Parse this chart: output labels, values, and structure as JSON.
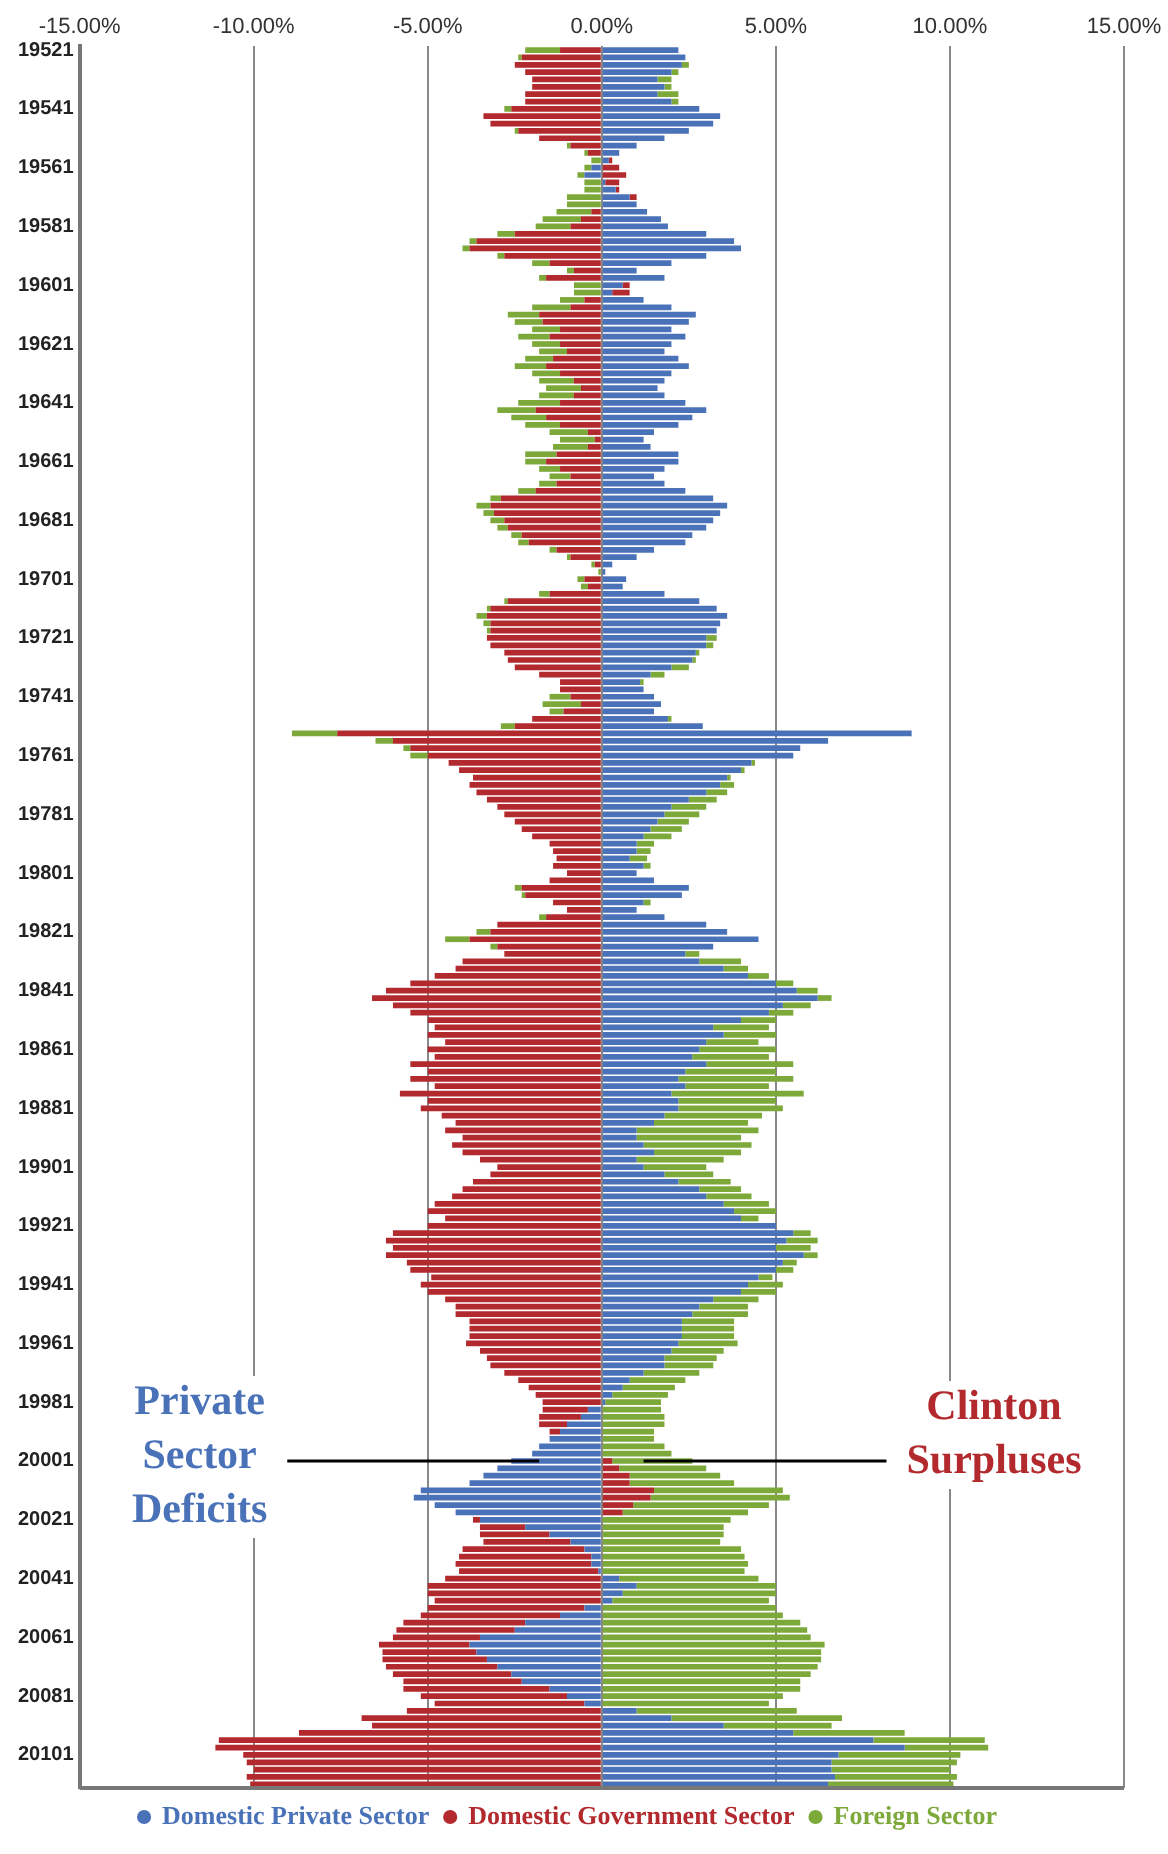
{
  "chart_data": {
    "type": "bar",
    "orientation": "horizontal",
    "stacked": true,
    "grid": "x",
    "legend": "bottom",
    "xlim": [
      -15,
      15
    ],
    "xticks": [
      {
        "value": -15,
        "label": "-15.00%"
      },
      {
        "value": -10,
        "label": "-10.00%"
      },
      {
        "value": -5,
        "label": "-5.00%"
      },
      {
        "value": 0,
        "label": "0.00%"
      },
      {
        "value": 5,
        "label": "5.00%"
      },
      {
        "value": 10,
        "label": "10.00%"
      },
      {
        "value": 15,
        "label": "15.00%"
      }
    ],
    "categories": [
      "19521",
      null,
      null,
      null,
      null,
      null,
      null,
      null,
      "19541",
      null,
      null,
      null,
      null,
      null,
      null,
      null,
      "19561",
      null,
      null,
      null,
      null,
      null,
      null,
      null,
      "19581",
      null,
      null,
      null,
      null,
      null,
      null,
      null,
      "19601",
      null,
      null,
      null,
      null,
      null,
      null,
      null,
      "19621",
      null,
      null,
      null,
      null,
      null,
      null,
      null,
      "19641",
      null,
      null,
      null,
      null,
      null,
      null,
      null,
      "19661",
      null,
      null,
      null,
      null,
      null,
      null,
      null,
      "19681",
      null,
      null,
      null,
      null,
      null,
      null,
      null,
      "19701",
      null,
      null,
      null,
      null,
      null,
      null,
      null,
      "19721",
      null,
      null,
      null,
      null,
      null,
      null,
      null,
      "19741",
      null,
      null,
      null,
      null,
      null,
      null,
      null,
      "19761",
      null,
      null,
      null,
      null,
      null,
      null,
      null,
      "19781",
      null,
      null,
      null,
      null,
      null,
      null,
      null,
      "19801",
      null,
      null,
      null,
      null,
      null,
      null,
      null,
      "19821",
      null,
      null,
      null,
      null,
      null,
      null,
      null,
      "19841",
      null,
      null,
      null,
      null,
      null,
      null,
      null,
      "19861",
      null,
      null,
      null,
      null,
      null,
      null,
      null,
      "19881",
      null,
      null,
      null,
      null,
      null,
      null,
      null,
      "19901",
      null,
      null,
      null,
      null,
      null,
      null,
      null,
      "19921",
      null,
      null,
      null,
      null,
      null,
      null,
      null,
      "19941",
      null,
      null,
      null,
      null,
      null,
      null,
      null,
      "19961",
      null,
      null,
      null,
      null,
      null,
      null,
      null,
      "19981",
      null,
      null,
      null,
      null,
      null,
      null,
      null,
      "20001",
      null,
      null,
      null,
      null,
      null,
      null,
      null,
      "20021",
      null,
      null,
      null,
      null,
      null,
      null,
      null,
      "20041",
      null,
      null,
      null,
      null,
      null,
      null,
      null,
      "20061",
      null,
      null,
      null,
      null,
      null,
      null,
      null,
      "20081",
      null,
      null,
      null,
      null,
      null,
      null,
      null,
      "20101",
      null,
      null,
      null,
      null
    ],
    "series": [
      {
        "name": "Domestic Private Sector",
        "color": "#4a72b8",
        "values": [
          2.2,
          2.4,
          2.3,
          2.0,
          1.6,
          1.8,
          1.6,
          2.0,
          2.8,
          3.4,
          3.2,
          2.5,
          1.8,
          1.0,
          0.5,
          0.2,
          -0.3,
          -0.5,
          0.1,
          0.4,
          0.8,
          1.0,
          1.3,
          1.7,
          1.9,
          3.0,
          3.8,
          4.0,
          3.0,
          2.0,
          1.0,
          1.8,
          0.6,
          0.3,
          1.2,
          2.0,
          2.7,
          2.5,
          2.0,
          2.4,
          2.0,
          1.8,
          2.2,
          2.5,
          2.0,
          1.8,
          1.6,
          1.8,
          2.4,
          3.0,
          2.6,
          2.2,
          1.5,
          1.2,
          1.4,
          2.2,
          2.2,
          1.8,
          1.5,
          1.8,
          2.4,
          3.2,
          3.6,
          3.4,
          3.2,
          3.0,
          2.6,
          2.4,
          1.5,
          1.0,
          0.3,
          0.1,
          0.7,
          0.6,
          1.8,
          2.8,
          3.3,
          3.6,
          3.4,
          3.3,
          3.0,
          3.0,
          2.7,
          2.6,
          2.0,
          1.4,
          1.1,
          1.2,
          1.5,
          1.7,
          1.5,
          1.9,
          2.9,
          8.9,
          6.5,
          5.7,
          5.5,
          4.3,
          4.0,
          3.6,
          3.4,
          3.0,
          2.5,
          2.0,
          1.8,
          1.6,
          1.4,
          1.2,
          1.0,
          1.0,
          0.8,
          1.2,
          1.0,
          1.5,
          2.5,
          2.3,
          1.2,
          1.0,
          1.8,
          3.0,
          3.6,
          4.5,
          3.2,
          2.4,
          2.8,
          3.5,
          4.2,
          5.0,
          5.6,
          6.2,
          5.2,
          4.8,
          4.0,
          3.2,
          3.5,
          3.0,
          2.8,
          2.6,
          3.0,
          2.4,
          2.2,
          2.4,
          2.0,
          2.2,
          2.2,
          1.8,
          1.5,
          1.0,
          1.0,
          1.2,
          1.5,
          1.0,
          1.2,
          1.8,
          2.2,
          2.8,
          3.0,
          3.5,
          3.8,
          4.0,
          5.0,
          5.5,
          5.3,
          5.0,
          5.8,
          5.2,
          5.0,
          4.5,
          4.2,
          4.0,
          3.2,
          2.8,
          2.6,
          2.3,
          2.3,
          2.3,
          2.2,
          2.0,
          1.8,
          1.8,
          1.2,
          0.8,
          0.6,
          0.3,
          0.1,
          -0.4,
          -0.6,
          -1.0,
          -1.2,
          -1.5,
          -1.8,
          -2.0,
          -2.6,
          -3.0,
          -3.4,
          -3.8,
          -5.2,
          -5.4,
          -4.8,
          -4.2,
          -3.5,
          -2.2,
          -1.5,
          -0.9,
          -0.5,
          -0.3,
          -0.3,
          -0.1,
          0.5,
          1.0,
          0.6,
          0.3,
          -0.5,
          -1.2,
          -2.2,
          -2.5,
          -3.5,
          -3.8,
          -3.6,
          -3.3,
          -3.0,
          -2.6,
          -2.3,
          -1.5,
          -1.0,
          -0.5,
          1.0,
          2.0,
          3.5,
          5.5,
          7.8,
          8.7,
          6.8,
          6.6,
          6.6,
          6.7,
          6.5
        ]
      },
      {
        "name": "Domestic Government Sector",
        "color": "#b22a2e",
        "values": [
          -1.2,
          -2.3,
          -2.5,
          -2.2,
          -2.0,
          -2.0,
          -2.2,
          -2.2,
          -2.6,
          -3.4,
          -3.2,
          -2.4,
          -1.8,
          -0.9,
          -0.4,
          0.1,
          0.5,
          0.7,
          0.4,
          0.1,
          0.2,
          0,
          -0.3,
          -0.6,
          -0.9,
          -2.5,
          -3.6,
          -3.8,
          -2.8,
          -1.5,
          -0.8,
          -1.6,
          0.2,
          0.5,
          -0.5,
          -0.9,
          -1.8,
          -1.7,
          -1.2,
          -1.5,
          -1.2,
          -1.0,
          -1.4,
          -1.6,
          -1.2,
          -0.8,
          -0.6,
          -0.8,
          -1.2,
          -1.9,
          -1.6,
          -1.2,
          -0.4,
          -0.2,
          -0.4,
          -1.3,
          -1.6,
          -1.2,
          -0.9,
          -1.3,
          -1.9,
          -2.9,
          -3.2,
          -3.1,
          -2.8,
          -2.7,
          -2.3,
          -2.1,
          -1.3,
          -0.9,
          -0.2,
          0,
          -0.5,
          -0.4,
          -1.5,
          -2.7,
          -3.2,
          -3.3,
          -3.2,
          -3.2,
          -3.3,
          -3.2,
          -2.8,
          -2.7,
          -2.5,
          -1.8,
          -1.2,
          -1.2,
          -0.9,
          -0.6,
          -1.1,
          -2.0,
          -2.5,
          -7.6,
          -6.0,
          -5.5,
          -5.0,
          -4.4,
          -4.1,
          -3.7,
          -3.8,
          -3.6,
          -3.3,
          -3.0,
          -2.8,
          -2.5,
          -2.3,
          -2.0,
          -1.5,
          -1.4,
          -1.3,
          -1.4,
          -1.0,
          -1.5,
          -2.3,
          -2.2,
          -1.4,
          -1.0,
          -1.6,
          -3.0,
          -3.2,
          -3.8,
          -3.0,
          -2.8,
          -4.0,
          -4.2,
          -4.8,
          -5.5,
          -6.2,
          -6.6,
          -6.0,
          -5.5,
          -5.0,
          -4.8,
          -5.0,
          -4.5,
          -5.0,
          -4.8,
          -5.5,
          -5.0,
          -5.5,
          -4.8,
          -5.8,
          -5.0,
          -5.2,
          -4.6,
          -4.2,
          -4.5,
          -4.0,
          -4.3,
          -4.0,
          -3.5,
          -3.0,
          -3.2,
          -3.7,
          -4.0,
          -4.3,
          -4.8,
          -5.0,
          -4.5,
          -5.0,
          -6.0,
          -6.2,
          -6.0,
          -6.2,
          -5.6,
          -5.5,
          -4.9,
          -5.2,
          -5.0,
          -4.5,
          -4.2,
          -4.2,
          -3.8,
          -3.8,
          -3.8,
          -3.9,
          -3.5,
          -3.3,
          -3.2,
          -2.8,
          -2.4,
          -2.1,
          -1.9,
          -1.7,
          -1.3,
          -1.2,
          -0.8,
          -0.3,
          0,
          0,
          0,
          0.3,
          0.5,
          0.8,
          0.8,
          1.5,
          1.4,
          0.9,
          0.6,
          -0.2,
          -1.3,
          -2.0,
          -2.5,
          -3.5,
          -3.8,
          -3.9,
          -4.0,
          -4.5,
          -5.0,
          -5.0,
          -4.8,
          -4.5,
          -4.0,
          -3.5,
          -3.4,
          -2.5,
          -2.6,
          -2.7,
          -3.0,
          -3.2,
          -3.4,
          -3.4,
          -4.2,
          -4.2,
          -4.3,
          -5.6,
          -6.9,
          -6.6,
          -8.7,
          -11.0,
          -11.1,
          -10.3,
          -10.2,
          -10.0,
          -10.2,
          -10.1
        ]
      },
      {
        "name": "Foreign Sector",
        "color": "#7da83a",
        "values": [
          -1.0,
          -0.1,
          0.2,
          0.2,
          0.4,
          0.2,
          0.6,
          0.2,
          -0.2,
          0,
          0,
          -0.1,
          0,
          -0.1,
          -0.1,
          -0.3,
          -0.2,
          -0.2,
          -0.5,
          -0.5,
          -1.0,
          -1.0,
          -1.0,
          -1.1,
          -1.0,
          -0.5,
          -0.2,
          -0.2,
          -0.2,
          -0.5,
          -0.2,
          -0.2,
          -0.8,
          -0.8,
          -0.7,
          -1.1,
          -0.9,
          -0.8,
          -0.8,
          -0.9,
          -0.8,
          -0.8,
          -0.8,
          -0.9,
          -0.8,
          -1.0,
          -1.0,
          -1.0,
          -1.2,
          -1.1,
          -1.0,
          -1.0,
          -1.1,
          -1.0,
          -1.0,
          -0.9,
          -0.6,
          -0.6,
          -0.6,
          -0.5,
          -0.5,
          -0.3,
          -0.4,
          -0.3,
          -0.4,
          -0.3,
          -0.3,
          -0.3,
          -0.2,
          -0.1,
          -0.1,
          -0.1,
          -0.2,
          -0.2,
          -0.3,
          -0.1,
          -0.1,
          -0.3,
          -0.2,
          -0.1,
          0.3,
          0.2,
          0.1,
          0.1,
          0.5,
          0.4,
          0.1,
          0,
          -0.6,
          -1.1,
          -0.4,
          0.1,
          -0.4,
          -1.3,
          -0.5,
          -0.2,
          -0.5,
          0.1,
          0.1,
          0.1,
          0.4,
          0.6,
          0.8,
          1.0,
          1.0,
          0.9,
          0.9,
          0.8,
          0.5,
          0.4,
          0.5,
          0.2,
          0,
          0,
          -0.2,
          -0.1,
          0.2,
          0,
          -0.2,
          0,
          -0.4,
          -0.7,
          -0.2,
          0.4,
          1.2,
          0.7,
          0.6,
          0.5,
          0.6,
          0.4,
          0.8,
          0.7,
          1.0,
          1.6,
          1.5,
          1.5,
          2.2,
          2.2,
          2.5,
          2.6,
          3.3,
          2.4,
          3.8,
          2.8,
          3.0,
          2.8,
          2.7,
          3.5,
          3.0,
          3.1,
          2.5,
          2.5,
          1.8,
          1.4,
          1.5,
          1.2,
          1.3,
          1.3,
          1.2,
          0.5,
          0,
          0.5,
          0.9,
          1.0,
          0.4,
          0.4,
          0.5,
          0.4,
          1.0,
          1.0,
          1.3,
          1.4,
          1.6,
          1.5,
          1.5,
          1.5,
          1.7,
          1.5,
          1.5,
          1.4,
          1.6,
          1.6,
          1.5,
          1.6,
          1.6,
          1.7,
          1.8,
          1.8,
          1.5,
          1.5,
          1.8,
          2.0,
          2.3,
          2.5,
          2.6,
          3.0,
          3.7,
          4.0,
          3.9,
          3.6,
          3.7,
          3.5,
          3.5,
          3.4,
          4.0,
          4.1,
          4.2,
          4.1,
          4.0,
          4.0,
          4.4,
          4.5,
          5.0,
          5.2,
          5.7,
          5.9,
          6.0,
          6.4,
          6.3,
          6.3,
          6.2,
          6.0,
          5.7,
          5.7,
          5.2,
          4.8,
          4.6,
          4.9,
          3.1,
          3.2,
          3.2,
          2.4,
          3.5,
          3.6,
          3.4,
          3.5,
          3.6
        ]
      }
    ],
    "annotations": [
      {
        "text": "Private\nSector\nDeficits",
        "x": -1.8,
        "y": "20001"
      },
      {
        "text": "Clinton\nSurpluses",
        "x": 1.2,
        "y": "20001"
      }
    ]
  }
}
